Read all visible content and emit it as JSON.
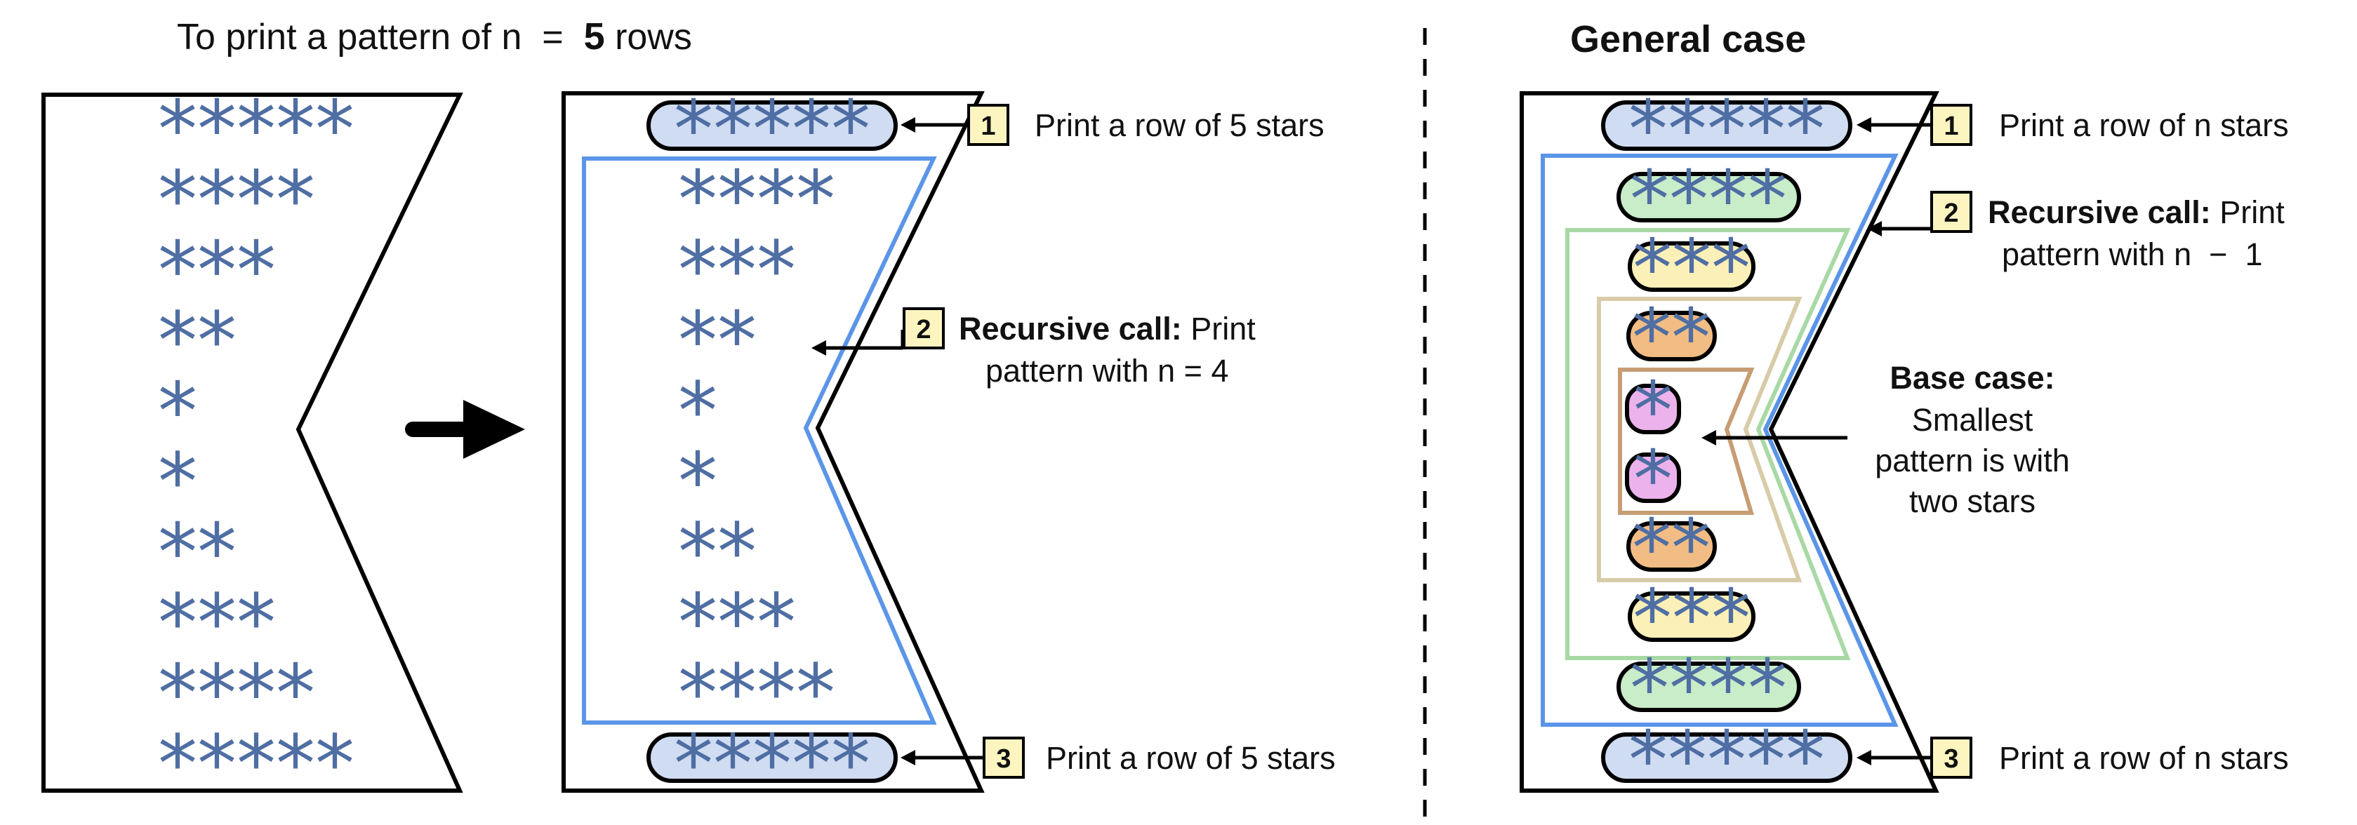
{
  "left_title": {
    "prefix": "To print a pattern of n  =  ",
    "n": "5",
    "suffix": " rows"
  },
  "right_title": "General case",
  "pattern_rows": [
    "*****",
    "****",
    "***",
    "**",
    "*",
    "*",
    "**",
    "***",
    "****",
    "*****"
  ],
  "middle": {
    "step1": {
      "badge": "1",
      "text": "Print a row of 5 stars"
    },
    "step2": {
      "badge": "2",
      "bold": "Recursive call:",
      "text_line1": " Print",
      "text_line2": "pattern with n = 4"
    },
    "step3": {
      "badge": "3",
      "text": "Print a row of 5 stars"
    }
  },
  "general": {
    "step1": {
      "badge": "1",
      "text": "Print a row of n stars"
    },
    "step2": {
      "badge": "2",
      "bold": "Recursive call:",
      "text_line1": " Print",
      "text_line2": "pattern with n  −  1"
    },
    "step3": {
      "badge": "3",
      "text": "Print a row of n stars"
    },
    "base_case": {
      "bold": "Base case:",
      "lines": [
        "Smallest",
        "pattern is with",
        "two stars"
      ]
    }
  },
  "colors": {
    "star": "#4f6ea3",
    "badge_fill": "#fdf5c0",
    "level5": "#cfdcf2",
    "level4": "#c9ecc9",
    "level3": "#fbf0b8",
    "level2": "#f1bd84",
    "level1": "#ecb2ec",
    "blue_frame": "#5a95e8",
    "green_frame": "#a8d9a5",
    "beige_frame": "#d8cba8",
    "brown_frame": "#c79d74"
  }
}
